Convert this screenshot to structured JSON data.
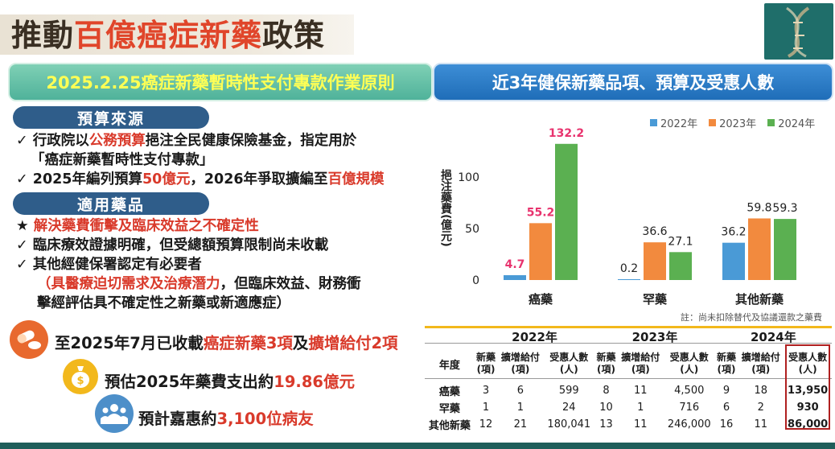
{
  "title": {
    "part1": "推動",
    "part2": "百億癌症新藥",
    "part3": "政策"
  },
  "left_header": "2025.2.25癌症新藥暫時性支付專款作業原則",
  "right_header": "近3年健保新藥品項、預算及受惠人數",
  "budget": {
    "heading": "預算來源",
    "items": [
      {
        "mark": "✓",
        "a": "行政院以",
        "b": "公務預算",
        "c": "挹注全民健康保險基金，指定用於"
      },
      {
        "mark": "",
        "a": "「癌症新藥暫時性支付專款」"
      },
      {
        "mark": "✓",
        "a": "2025年編列預算",
        "b": "50億元",
        "c": "，2026年爭取擴編至",
        "d": "百億規模"
      }
    ]
  },
  "drugs": {
    "heading": "適用藥品",
    "items": [
      {
        "mark": "★",
        "text": "解決藥費衝擊及臨床效益之不確定性"
      },
      {
        "mark": "✓",
        "text": "臨床療效證據明確，但受總額預算限制尚未收載"
      },
      {
        "mark": "✓",
        "text": "其他經健保署認定有必要者"
      }
    ],
    "note_red": "（具醫療迫切需求及治療潛力",
    "note_black1": "，但臨床效益、財務衝",
    "note_black2": "擊經評估具不確定性之新藥或新適應症）"
  },
  "highlights": [
    {
      "icon": "pill-icon",
      "a": "至2025年7月已收載",
      "b": "癌症新藥3項",
      "c": "及",
      "d": "擴增給付2項"
    },
    {
      "icon": "money-bag-icon",
      "a": "預估2025年藥費支出約",
      "b": "19.86億元"
    },
    {
      "icon": "people-icon",
      "a": "預計嘉惠約",
      "b": "3,100位病友"
    }
  ],
  "colors": {
    "y2022": "#4a9ad6",
    "y2023": "#f28a3e",
    "y2024": "#5bb051",
    "accent_red": "#d93a2b",
    "pink": "#e8336e"
  },
  "chart_data": {
    "type": "bar",
    "ylabel": "挹注藥費(億元)",
    "ylim": [
      0,
      140
    ],
    "yticks": [
      "0",
      "50",
      "100"
    ],
    "categories": [
      "癌藥",
      "罕藥",
      "其他新藥"
    ],
    "series": [
      {
        "name": "2022年",
        "values": [
          4.7,
          0.2,
          36.2
        ],
        "labels": [
          "4.7",
          "0.2",
          "36.2"
        ]
      },
      {
        "name": "2023年",
        "values": [
          55.2,
          36.6,
          59.8
        ],
        "labels": [
          "55.2",
          "36.6",
          "59.8"
        ]
      },
      {
        "name": "2024年",
        "values": [
          132.2,
          27.1,
          59.3
        ],
        "labels": [
          "132.2",
          "27.1",
          "59.3"
        ]
      }
    ],
    "note": "註：尚未扣除替代及協議還款之藥費"
  },
  "table": {
    "year_label": "年度",
    "years": [
      "2022年",
      "2023年",
      "2024年"
    ],
    "col_headers": [
      [
        "新藥",
        "(項)"
      ],
      [
        "擴增給付",
        "(項)"
      ],
      [
        "受惠人數",
        "(人)"
      ]
    ],
    "rows": [
      {
        "name": "癌藥",
        "cells": [
          "3",
          "6",
          "599",
          "8",
          "11",
          "4,500",
          "9",
          "18",
          "13,950"
        ]
      },
      {
        "name": "罕藥",
        "cells": [
          "1",
          "1",
          "24",
          "10",
          "1",
          "716",
          "6",
          "2",
          "930"
        ]
      },
      {
        "name": "其他新藥",
        "cells": [
          "12",
          "21",
          "180,041",
          "13",
          "11",
          "246,000",
          "16",
          "11",
          "86,000"
        ]
      }
    ]
  }
}
